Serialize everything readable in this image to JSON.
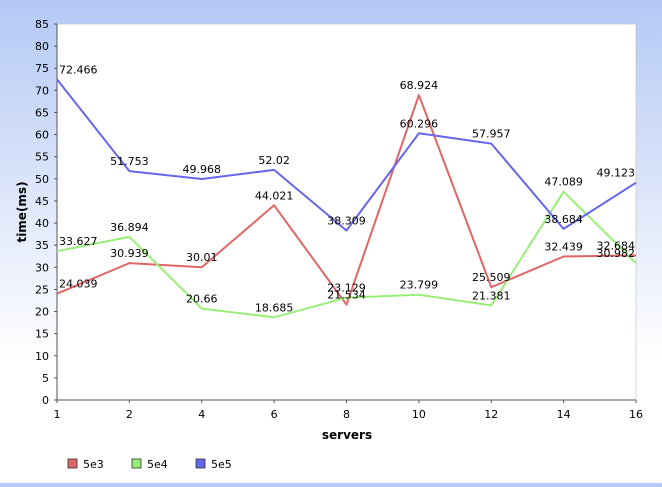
{
  "chart_data": {
    "type": "line",
    "categories": [
      "1",
      "2",
      "4",
      "6",
      "8",
      "10",
      "12",
      "14",
      "16"
    ],
    "xlabel": "servers",
    "ylabel": "time(ms)",
    "ylim": [
      0,
      85
    ],
    "yticks": [
      0,
      5,
      10,
      15,
      20,
      25,
      30,
      35,
      40,
      45,
      50,
      55,
      60,
      65,
      70,
      75,
      80,
      85
    ],
    "grid": false,
    "legend_position": "bottom-left",
    "series": [
      {
        "name": "5e3",
        "color": "#e06666",
        "values": [
          24.039,
          30.939,
          30.01,
          44.021,
          21.534,
          68.924,
          25.509,
          32.439,
          32.684
        ]
      },
      {
        "name": "5e4",
        "color": "#99ee77",
        "values": [
          33.627,
          36.894,
          20.66,
          18.685,
          23.129,
          23.799,
          21.381,
          47.089,
          30.982
        ]
      },
      {
        "name": "5e5",
        "color": "#6666ee",
        "values": [
          72.466,
          51.753,
          49.968,
          52.02,
          38.309,
          60.296,
          57.957,
          38.684,
          49.123
        ]
      }
    ]
  }
}
